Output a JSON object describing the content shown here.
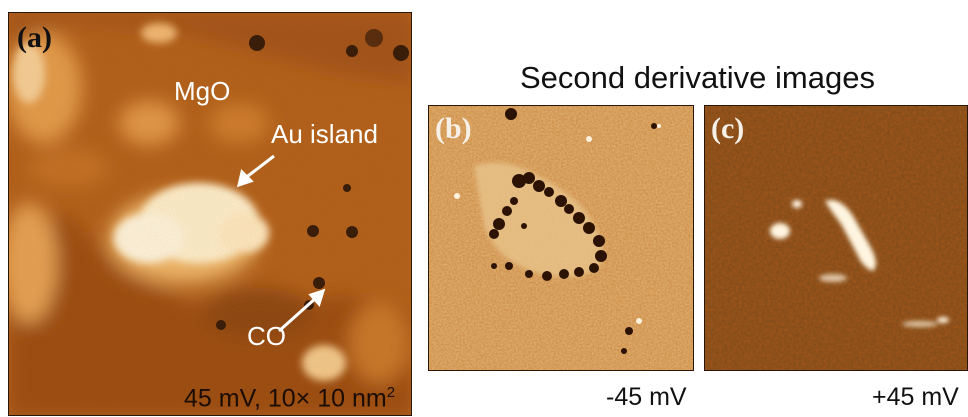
{
  "figure": {
    "heading": "Second derivative images",
    "panels": [
      {
        "id": "a",
        "letter": "(a)",
        "labels": {
          "substrate": "MgO",
          "island": "Au island",
          "adsorbate": "CO"
        },
        "scan_params_prefix": "45 mV, 10",
        "scan_params_times": "×",
        "scan_params_suffix": " 10 nm",
        "scan_params_exponent": "2"
      },
      {
        "id": "b",
        "letter": "(b)",
        "bias": "-45 mV"
      },
      {
        "id": "c",
        "letter": "(c)",
        "bias": "+45 mV"
      }
    ],
    "colors": {
      "stm_dark": "#3a1c05",
      "stm_mid": "#c06a1e",
      "stm_bright": "#fff6e0"
    }
  }
}
